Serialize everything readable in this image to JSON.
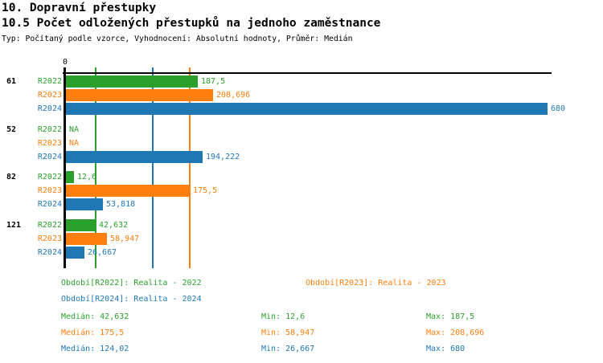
{
  "header": {
    "title": "10. Dopravní přestupky",
    "subtitle": "10.5 Počet odložených přestupků na jednoho zaměstnance",
    "meta": "Typ: Počítaný podle vzorce, Vyhodnocení: Absolutní hodnoty, Průměr: Medián"
  },
  "chart_data": {
    "type": "bar",
    "orientation": "horizontal",
    "title": "10.5 Počet odložených přestupků na jednoho zaměstnance",
    "value_axis": {
      "zero_label": "0",
      "min": 0,
      "max": 680,
      "grid": "median-lines-only"
    },
    "series": [
      {
        "name": "R2022",
        "color": "#2ca02c",
        "legend": "Období[R2022]: Realita - 2022",
        "median": 42.632
      },
      {
        "name": "R2023",
        "color": "#ff7f0e",
        "legend": "Období[R2023]: Realita - 2023",
        "median": 175.5
      },
      {
        "name": "R2024",
        "color": "#1f77b4",
        "legend": "Období[R2024]: Realita - 2024",
        "median": 124.02
      }
    ],
    "groups": [
      {
        "label": "61",
        "bars": [
          {
            "series": "R2022",
            "value": 187.5,
            "display": "187,5"
          },
          {
            "series": "R2023",
            "value": 208.696,
            "display": "208,696"
          },
          {
            "series": "R2024",
            "value": 680,
            "display": "680"
          }
        ]
      },
      {
        "label": "52",
        "bars": [
          {
            "series": "R2022",
            "value": null,
            "display": "NA"
          },
          {
            "series": "R2023",
            "value": null,
            "display": "NA"
          },
          {
            "series": "R2024",
            "value": 194.222,
            "display": "194,222"
          }
        ]
      },
      {
        "label": "82",
        "bars": [
          {
            "series": "R2022",
            "value": 12.6,
            "display": "12,6"
          },
          {
            "series": "R2023",
            "value": 175.5,
            "display": "175,5"
          },
          {
            "series": "R2024",
            "value": 53.818,
            "display": "53,818"
          }
        ]
      },
      {
        "label": "121",
        "bars": [
          {
            "series": "R2022",
            "value": 42.632,
            "display": "42,632"
          },
          {
            "series": "R2023",
            "value": 58.947,
            "display": "58,947"
          },
          {
            "series": "R2024",
            "value": 26.667,
            "display": "26,667"
          }
        ]
      }
    ],
    "median_lines": [
      {
        "series": "R2022",
        "value": 42.632
      },
      {
        "series": "R2024",
        "value": 124.02
      },
      {
        "series": "R2023",
        "value": 175.5
      }
    ]
  },
  "legend": {
    "rows": [
      [
        {
          "label": "Období[R2022]: Realita - 2022",
          "color": "#2ca02c"
        },
        {
          "label": "Období[R2023]: Realita - 2023",
          "color": "#ff7f0e"
        }
      ],
      [
        {
          "label": "Období[R2024]: Realita - 2024",
          "color": "#1f77b4"
        }
      ]
    ]
  },
  "stats": {
    "rows": [
      {
        "color": "#2ca02c",
        "median": "Medián: 42,632",
        "min": "Min: 12,6",
        "max": "Max: 187,5"
      },
      {
        "color": "#ff7f0e",
        "median": "Medián: 175,5",
        "min": "Min: 58,947",
        "max": "Max: 208,696"
      },
      {
        "color": "#1f77b4",
        "median": "Medián: 124,02",
        "min": "Min: 26,667",
        "max": "Max: 680"
      }
    ]
  }
}
